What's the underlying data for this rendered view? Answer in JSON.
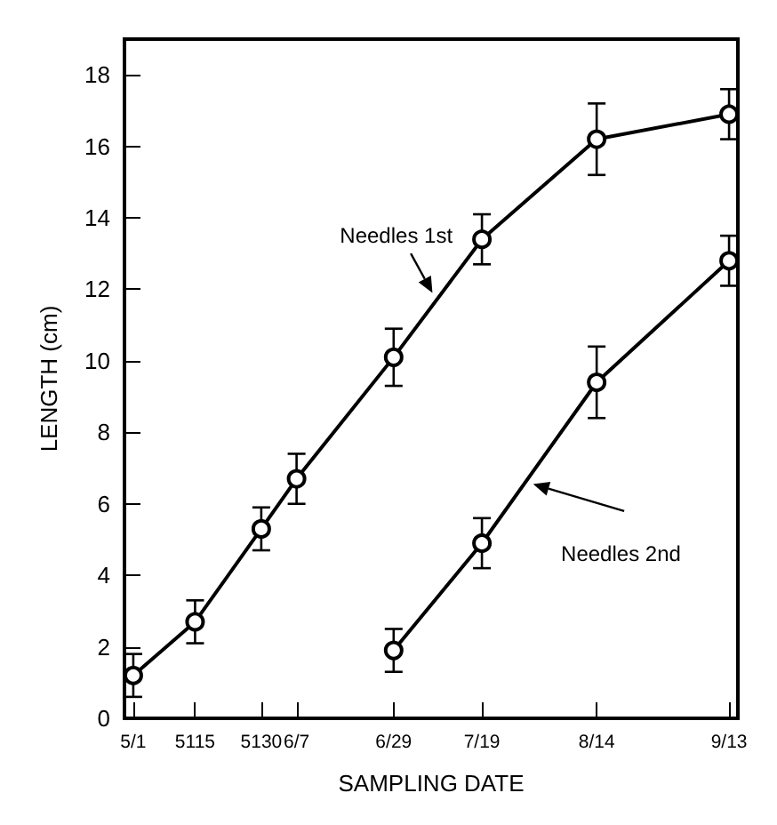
{
  "chart_data": {
    "type": "line",
    "xlabel": "SAMPLING DATE",
    "ylabel": "LENGTH (cm)",
    "xlim": [
      "--04-29",
      "--09-15"
    ],
    "xticks": [
      {
        "value": "--05-01",
        "label": "5/1"
      },
      {
        "value": "--05-15",
        "label": "5115"
      },
      {
        "value": "--05-30",
        "label": "5130"
      },
      {
        "value": "--06-07",
        "label": "6/7"
      },
      {
        "value": "--06-29",
        "label": "6/29"
      },
      {
        "value": "--07-19",
        "label": "7/19"
      },
      {
        "value": "--08-14",
        "label": "8/14"
      },
      {
        "value": "--09-13",
        "label": "9/13"
      }
    ],
    "ylim": [
      0,
      19
    ],
    "yticks": [
      0,
      2,
      4,
      6,
      8,
      10,
      12,
      14,
      16,
      18
    ],
    "marker": "circle",
    "line_style": "solid",
    "grid": false,
    "legend": false,
    "series": [
      {
        "name": "Needles 1st",
        "color": "#000000",
        "x": [
          "--05-01",
          "--05-15",
          "--05-30",
          "--06-07",
          "--06-29",
          "--07-19",
          "--08-14",
          "--09-13"
        ],
        "values": [
          1.2,
          2.7,
          5.3,
          6.7,
          10.1,
          13.4,
          16.2,
          16.9
        ],
        "errors": [
          0.6,
          0.6,
          0.6,
          0.7,
          0.8,
          0.7,
          1.0,
          0.7
        ]
      },
      {
        "name": "Needles 2nd",
        "color": "#000000",
        "x": [
          "--06-29",
          "--07-19",
          "--08-14",
          "--09-13"
        ],
        "values": [
          1.9,
          4.9,
          9.4,
          12.8
        ],
        "errors": [
          0.6,
          0.7,
          1.0,
          0.7
        ]
      }
    ]
  }
}
